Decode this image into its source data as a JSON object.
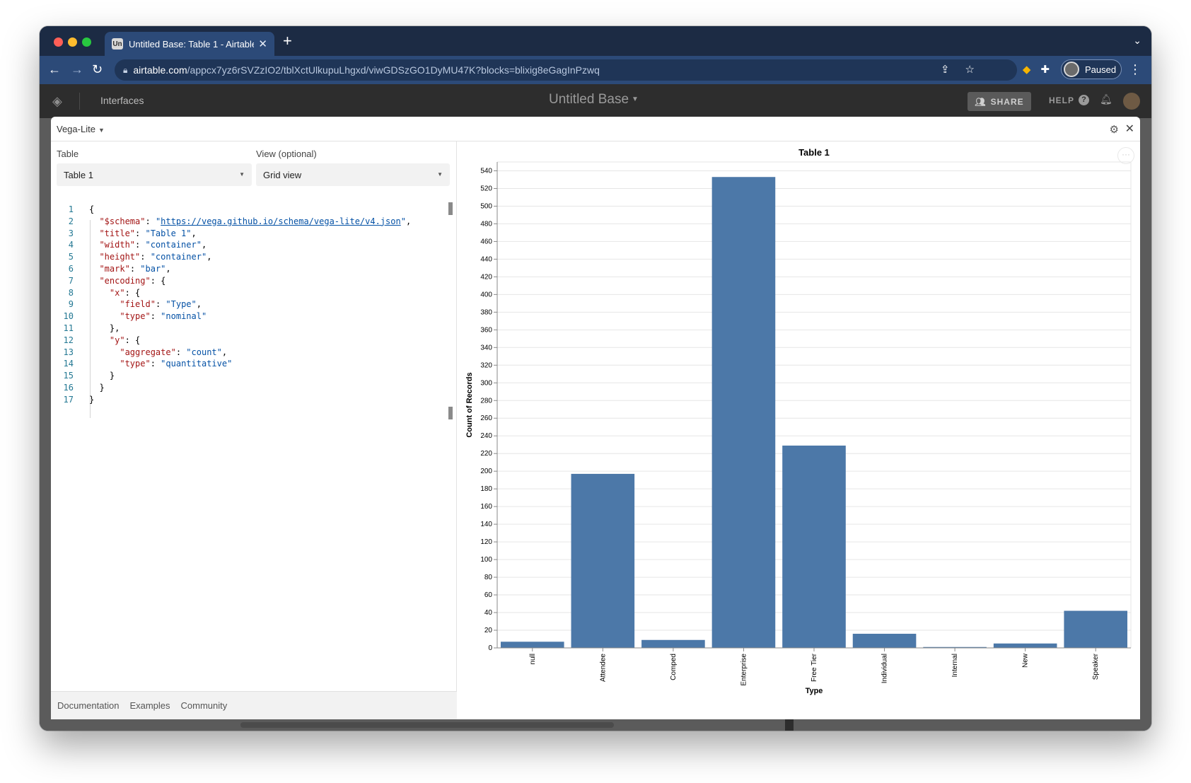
{
  "browser": {
    "tab_favicon": "Un",
    "tab_title": "Untitled Base: Table 1 - Airtable",
    "url_domain": "airtable.com",
    "url_path": "/appcx7yz6rSVZzIO2/tblXctUlkupuLhgxd/viwGDSzGO1DyMU47K?blocks=blixig8eGagInPzwq",
    "profile_label": "Paused"
  },
  "airtable": {
    "interfaces_label": "Interfaces",
    "base_name": "Untitled Base",
    "share_label": "SHARE",
    "help_label": "HELP"
  },
  "panel": {
    "title": "Vega-Lite",
    "table_label": "Table",
    "table_value": "Table 1",
    "view_label": "View (optional)",
    "view_value": "Grid view",
    "footer_links": [
      "Documentation",
      "Examples",
      "Community"
    ]
  },
  "code_lines": [
    "{",
    "  \"$schema\": \"https://vega.github.io/schema/vega-lite/v4.json\",",
    "  \"title\": \"Table 1\",",
    "  \"width\": \"container\",",
    "  \"height\": \"container\",",
    "  \"mark\": \"bar\",",
    "  \"encoding\": {",
    "    \"x\": {",
    "      \"field\": \"Type\",",
    "      \"type\": \"nominal\"",
    "    },",
    "    \"y\": {",
    "      \"aggregate\": \"count\",",
    "      \"type\": \"quantitative\"",
    "    }",
    "  }",
    "}"
  ],
  "chart_data": {
    "type": "bar",
    "title": "Table 1",
    "xlabel": "Type",
    "ylabel": "Count of Records",
    "categories": [
      "null",
      "Attendee",
      "Comped",
      "Enterprise",
      "Free Tier",
      "Individual",
      "Internal",
      "New",
      "Speaker"
    ],
    "values": [
      7,
      197,
      9,
      533,
      229,
      16,
      1,
      5,
      42
    ],
    "ylim": [
      0,
      550
    ],
    "yticks": [
      0,
      20,
      40,
      60,
      80,
      100,
      120,
      140,
      160,
      180,
      200,
      220,
      240,
      260,
      280,
      300,
      320,
      340,
      360,
      380,
      400,
      420,
      440,
      460,
      480,
      500,
      520,
      540
    ],
    "bar_color": "#4c78a8",
    "grid": true
  }
}
